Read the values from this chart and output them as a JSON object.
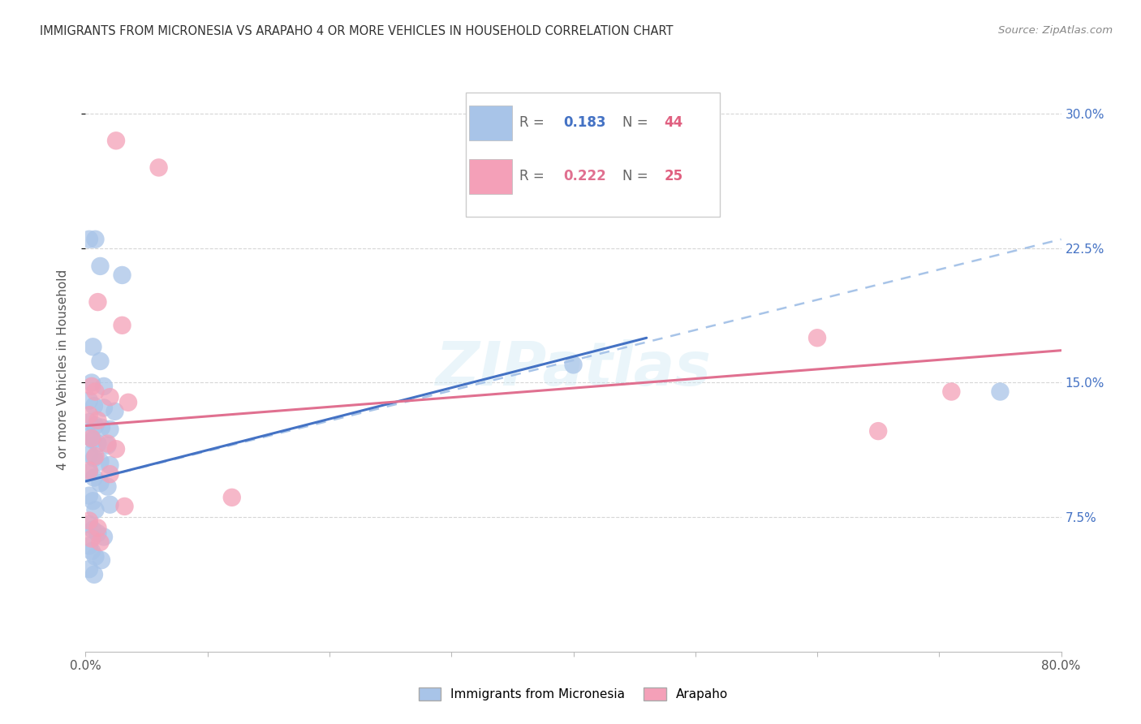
{
  "title": "IMMIGRANTS FROM MICRONESIA VS ARAPAHO 4 OR MORE VEHICLES IN HOUSEHOLD CORRELATION CHART",
  "source": "Source: ZipAtlas.com",
  "ylabel": "4 or more Vehicles in Household",
  "ytick_values": [
    0.075,
    0.15,
    0.225,
    0.3
  ],
  "ytick_labels": [
    "7.5%",
    "15.0%",
    "22.5%",
    "30.0%"
  ],
  "xlim": [
    0.0,
    0.8
  ],
  "ylim": [
    0.0,
    0.315
  ],
  "watermark": "ZIPatlas",
  "legend_blue_r": "0.183",
  "legend_blue_n": "44",
  "legend_pink_r": "0.222",
  "legend_pink_n": "25",
  "blue_color": "#a8c4e8",
  "pink_color": "#f4a0b8",
  "blue_line_color": "#4472c4",
  "pink_line_color": "#e07090",
  "blue_solid_line": [
    [
      0.0,
      0.095
    ],
    [
      0.46,
      0.175
    ]
  ],
  "blue_dash_line": [
    [
      0.0,
      0.095
    ],
    [
      0.8,
      0.23
    ]
  ],
  "pink_line": [
    [
      0.0,
      0.126
    ],
    [
      0.8,
      0.168
    ]
  ],
  "blue_points": [
    [
      0.003,
      0.23
    ],
    [
      0.008,
      0.23
    ],
    [
      0.012,
      0.215
    ],
    [
      0.03,
      0.21
    ],
    [
      0.006,
      0.17
    ],
    [
      0.012,
      0.162
    ],
    [
      0.005,
      0.15
    ],
    [
      0.015,
      0.148
    ],
    [
      0.003,
      0.14
    ],
    [
      0.007,
      0.137
    ],
    [
      0.015,
      0.136
    ],
    [
      0.024,
      0.134
    ],
    [
      0.003,
      0.128
    ],
    [
      0.008,
      0.126
    ],
    [
      0.013,
      0.125
    ],
    [
      0.02,
      0.124
    ],
    [
      0.003,
      0.12
    ],
    [
      0.006,
      0.118
    ],
    [
      0.01,
      0.116
    ],
    [
      0.018,
      0.115
    ],
    [
      0.003,
      0.11
    ],
    [
      0.007,
      0.108
    ],
    [
      0.012,
      0.106
    ],
    [
      0.02,
      0.104
    ],
    [
      0.003,
      0.1
    ],
    [
      0.007,
      0.097
    ],
    [
      0.012,
      0.094
    ],
    [
      0.018,
      0.092
    ],
    [
      0.003,
      0.087
    ],
    [
      0.006,
      0.084
    ],
    [
      0.02,
      0.082
    ],
    [
      0.008,
      0.079
    ],
    [
      0.003,
      0.071
    ],
    [
      0.006,
      0.068
    ],
    [
      0.01,
      0.066
    ],
    [
      0.015,
      0.064
    ],
    [
      0.003,
      0.059
    ],
    [
      0.005,
      0.056
    ],
    [
      0.008,
      0.053
    ],
    [
      0.013,
      0.051
    ],
    [
      0.003,
      0.046
    ],
    [
      0.007,
      0.043
    ],
    [
      0.4,
      0.16
    ],
    [
      0.75,
      0.145
    ]
  ],
  "pink_points": [
    [
      0.025,
      0.285
    ],
    [
      0.06,
      0.27
    ],
    [
      0.01,
      0.195
    ],
    [
      0.03,
      0.182
    ],
    [
      0.005,
      0.148
    ],
    [
      0.008,
      0.145
    ],
    [
      0.02,
      0.142
    ],
    [
      0.035,
      0.139
    ],
    [
      0.003,
      0.132
    ],
    [
      0.01,
      0.129
    ],
    [
      0.005,
      0.119
    ],
    [
      0.018,
      0.116
    ],
    [
      0.025,
      0.113
    ],
    [
      0.008,
      0.109
    ],
    [
      0.003,
      0.101
    ],
    [
      0.02,
      0.099
    ],
    [
      0.032,
      0.081
    ],
    [
      0.12,
      0.086
    ],
    [
      0.003,
      0.073
    ],
    [
      0.01,
      0.069
    ],
    [
      0.005,
      0.063
    ],
    [
      0.012,
      0.061
    ],
    [
      0.6,
      0.175
    ],
    [
      0.71,
      0.145
    ],
    [
      0.65,
      0.123
    ]
  ]
}
